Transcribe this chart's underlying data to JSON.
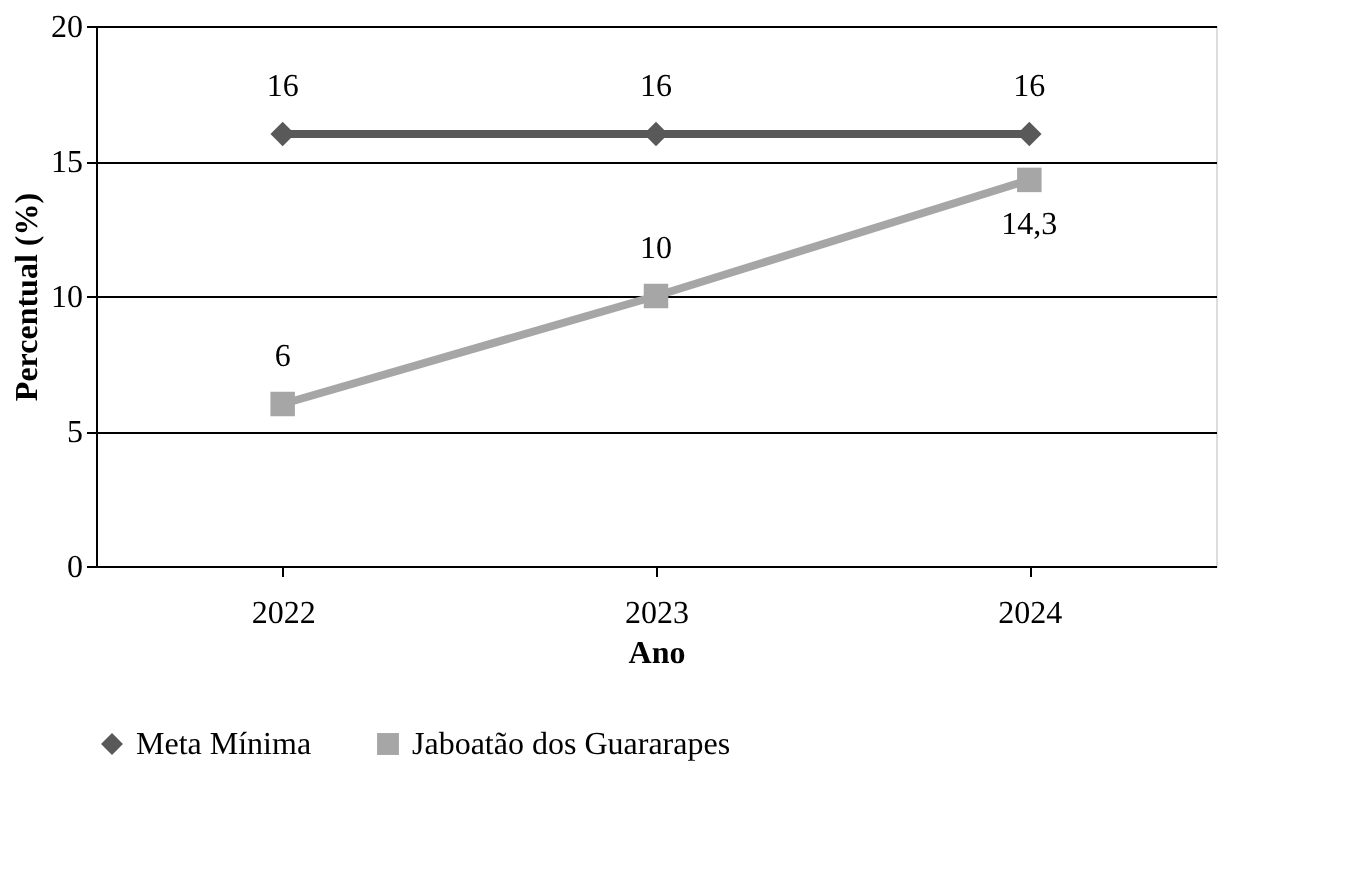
{
  "chart_data": {
    "type": "line",
    "xlabel": "Ano",
    "ylabel": "Percentual (%)",
    "categories": [
      "2022",
      "2023",
      "2024"
    ],
    "series": [
      {
        "name": "Meta Mínima",
        "color": "#595959",
        "marker": "diamond",
        "values": [
          16,
          16,
          16
        ],
        "value_labels": [
          "16",
          "16",
          "16"
        ]
      },
      {
        "name": "Jaboatão dos Guararapes",
        "color": "#a6a6a6",
        "marker": "square",
        "values": [
          6,
          10,
          14.3
        ],
        "value_labels": [
          "6",
          "10",
          "14,3"
        ]
      }
    ],
    "ylim": [
      0,
      20
    ],
    "yticks": [
      0,
      5,
      10,
      15,
      20
    ],
    "grid": "y",
    "legend": "bottom"
  }
}
